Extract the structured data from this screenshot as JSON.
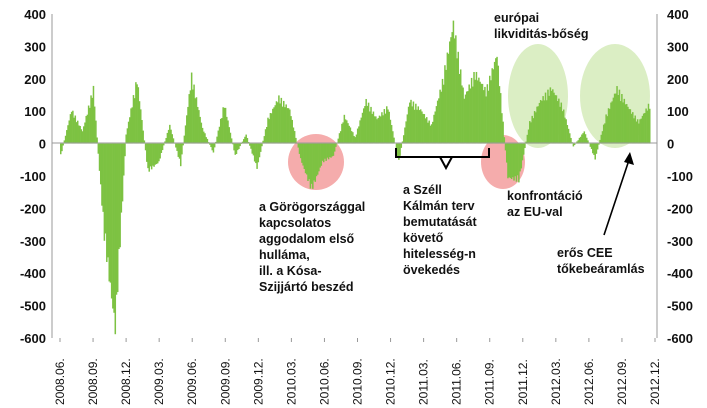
{
  "chart_data": {
    "type": "area",
    "title": "",
    "xlabel": "",
    "ylabel": "",
    "ylim": [
      -600,
      400
    ],
    "y_ticks": [
      400,
      300,
      200,
      100,
      0,
      -100,
      -200,
      -300,
      -400,
      -500,
      -600
    ],
    "grid": false,
    "dual_y_axis": true,
    "series_color": "#7dc242",
    "x_tick_labels": [
      "2008.06.",
      "2008.09.",
      "2008.12.",
      "2009.03.",
      "2009.06.",
      "2009.09.",
      "2009.12.",
      "2010.03.",
      "2010.06.",
      "2010.09.",
      "2010.12.",
      "2011.03.",
      "2011.06.",
      "2011.09.",
      "2011.12.",
      "2012.03.",
      "2012.06.",
      "2012.09.",
      "2012.12."
    ],
    "series": [
      {
        "name": "",
        "x": [
          "2008.06.",
          "2008.07.",
          "2008.08.",
          "2008.09.",
          "2008.10.",
          "2008.11.",
          "2008.12.",
          "2009.01.",
          "2009.02.",
          "2009.03.",
          "2009.04.",
          "2009.05.",
          "2009.06.",
          "2009.07.",
          "2009.08.",
          "2009.09.",
          "2009.10.",
          "2009.11.",
          "2009.12.",
          "2010.01.",
          "2010.02.",
          "2010.03.",
          "2010.04.",
          "2010.05.",
          "2010.06.",
          "2010.07.",
          "2010.08.",
          "2010.09.",
          "2010.10.",
          "2010.11.",
          "2010.12.",
          "2011.01.",
          "2011.02.",
          "2011.03.",
          "2011.04.",
          "2011.05.",
          "2011.06.",
          "2011.07.",
          "2011.08.",
          "2011.09.",
          "2011.10.",
          "2011.11.",
          "2011.12.",
          "2012.01.",
          "2012.02.",
          "2012.03.",
          "2012.04.",
          "2012.05.",
          "2012.06.",
          "2012.07.",
          "2012.08.",
          "2012.09.",
          "2012.10.",
          "2012.11.",
          "2012.12."
        ],
        "values": [
          -40,
          110,
          40,
          180,
          -300,
          -600,
          30,
          210,
          -90,
          -60,
          60,
          -70,
          220,
          50,
          -30,
          130,
          -40,
          30,
          -80,
          80,
          150,
          110,
          -50,
          -150,
          -60,
          -40,
          90,
          20,
          140,
          80,
          120,
          -60,
          140,
          110,
          60,
          200,
          390,
          150,
          230,
          170,
          290,
          -110,
          -120,
          70,
          140,
          180,
          120,
          -10,
          40,
          -50,
          90,
          180,
          120,
          70,
          130
        ]
      }
    ],
    "highlight_circles": [
      {
        "x_center": "2010.06.",
        "color": "#f08080",
        "meaning": "Greek concerns"
      },
      {
        "x_center": "2011.11.",
        "color": "#f08080",
        "meaning": "EU confrontation"
      },
      {
        "x_center": "2012.03.",
        "color": "#cfe8b0",
        "meaning": "liquidity"
      },
      {
        "x_center": "2012.09.",
        "color": "#cfe8b0",
        "meaning": "inflows"
      }
    ],
    "annotations": {
      "greek": [
        "a Görögországgal",
        "kapcsolatos",
        "aggodalom első",
        "hulláma,",
        "ill. a Kósa-",
        "Szijjártó beszéd"
      ],
      "szell": [
        "a Széll",
        "Kálmán terv",
        "bemutatását",
        "követő",
        "hitelesség-n",
        "övekedés"
      ],
      "confrontation": [
        "konfrontáció",
        "az EU-val"
      ],
      "liquidity": [
        "európai",
        "likviditás-bőség"
      ],
      "cee": [
        "erős CEE",
        "tőkebeáramlás"
      ]
    }
  }
}
